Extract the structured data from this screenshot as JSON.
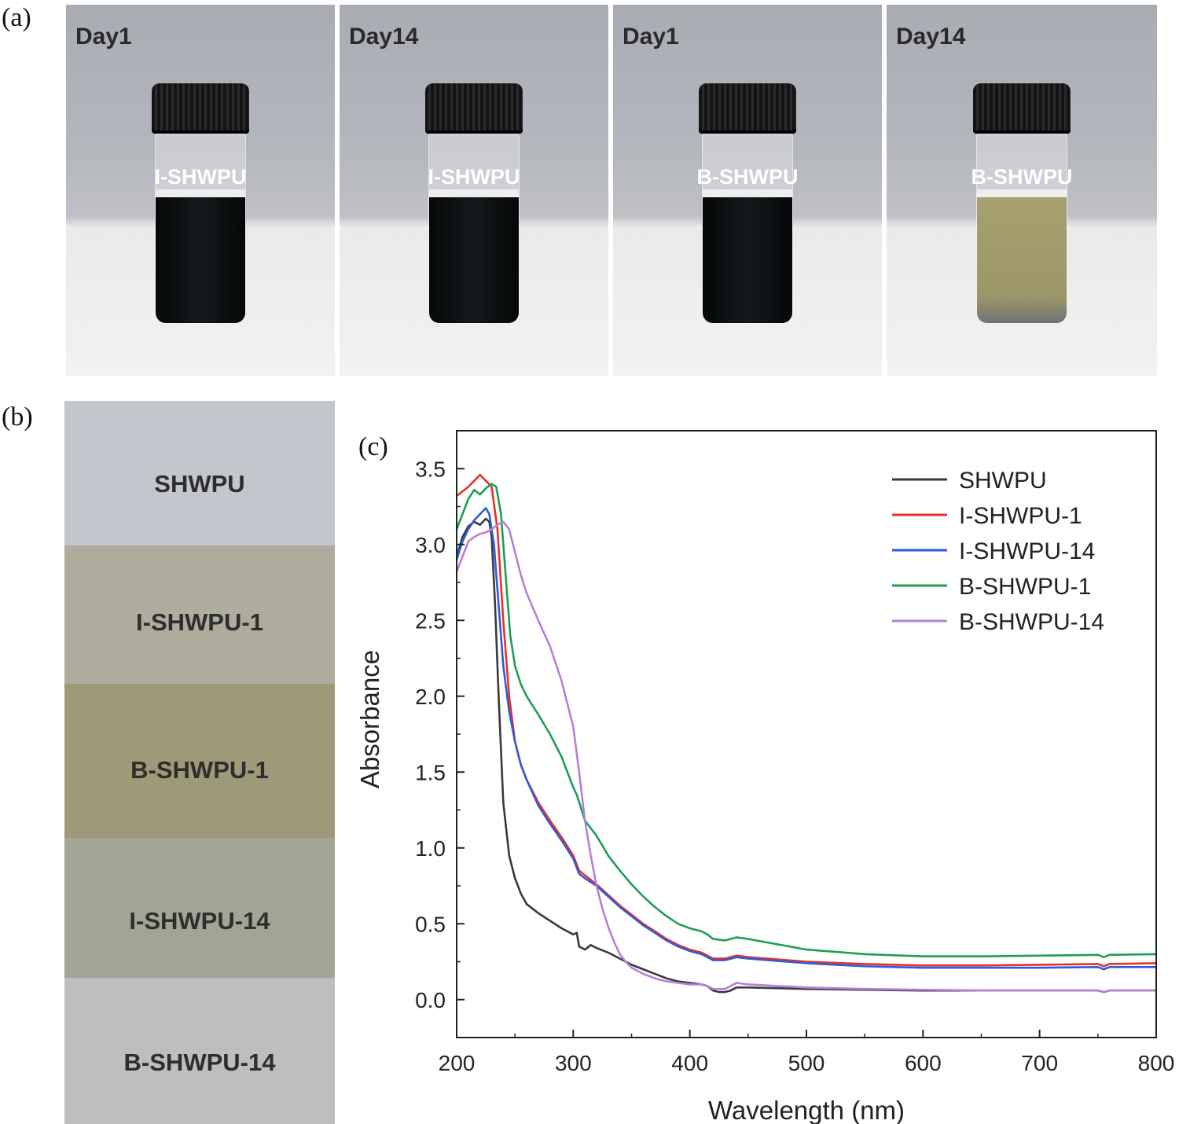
{
  "panels": {
    "a": "(a)",
    "b": "(b)",
    "c": "(c)"
  },
  "vials": [
    {
      "day": "Day1",
      "label": "I-SHWPU",
      "liquid": "dark"
    },
    {
      "day": "Day14",
      "label": "I-SHWPU",
      "liquid": "dark"
    },
    {
      "day": "Day1",
      "label": "B-SHWPU",
      "liquid": "dark"
    },
    {
      "day": "Day14",
      "label": "B-SHWPU",
      "liquid": "olive"
    }
  ],
  "films": [
    {
      "label": "SHWPU",
      "color": "#c3c6cc"
    },
    {
      "label": "I-SHWPU-1",
      "color": "#aeac9c"
    },
    {
      "label": "B-SHWPU-1",
      "color": "#9e9a78"
    },
    {
      "label": "I-SHWPU-14",
      "color": "#a2a494"
    },
    {
      "label": "B-SHWPU-14",
      "color": "#bdbfbf"
    }
  ],
  "chart_data": {
    "type": "line",
    "title": "",
    "xlabel": "Wavelength (nm)",
    "ylabel": "Absorbance",
    "xlim": [
      200,
      800
    ],
    "ylim": [
      -0.25,
      3.75
    ],
    "xticks": [
      200,
      300,
      400,
      500,
      600,
      700,
      800
    ],
    "yticks": [
      0.0,
      0.5,
      1.0,
      1.5,
      2.0,
      2.5,
      3.0,
      3.5
    ],
    "xtick_labels": [
      "200",
      "300",
      "400",
      "500",
      "600",
      "700",
      "800"
    ],
    "ytick_labels": [
      "0.0",
      "0.5",
      "1.0",
      "1.5",
      "2.0",
      "2.5",
      "3.0",
      "3.5"
    ],
    "legend_position": "top-right",
    "series": [
      {
        "name": "SHWPU",
        "color": "#3a3a3a",
        "points": [
          [
            200,
            2.92
          ],
          [
            205,
            3.05
          ],
          [
            210,
            3.12
          ],
          [
            215,
            3.15
          ],
          [
            220,
            3.13
          ],
          [
            225,
            3.17
          ],
          [
            228,
            3.15
          ],
          [
            230,
            3.05
          ],
          [
            233,
            2.6
          ],
          [
            236,
            2.0
          ],
          [
            240,
            1.3
          ],
          [
            245,
            0.95
          ],
          [
            250,
            0.8
          ],
          [
            255,
            0.7
          ],
          [
            260,
            0.63
          ],
          [
            270,
            0.57
          ],
          [
            280,
            0.52
          ],
          [
            290,
            0.47
          ],
          [
            300,
            0.43
          ],
          [
            303,
            0.44
          ],
          [
            305,
            0.35
          ],
          [
            310,
            0.33
          ],
          [
            315,
            0.36
          ],
          [
            320,
            0.34
          ],
          [
            330,
            0.31
          ],
          [
            340,
            0.27
          ],
          [
            350,
            0.23
          ],
          [
            360,
            0.2
          ],
          [
            370,
            0.17
          ],
          [
            380,
            0.14
          ],
          [
            390,
            0.12
          ],
          [
            400,
            0.11
          ],
          [
            410,
            0.1
          ],
          [
            415,
            0.09
          ],
          [
            420,
            0.06
          ],
          [
            425,
            0.05
          ],
          [
            430,
            0.05
          ],
          [
            435,
            0.06
          ],
          [
            440,
            0.08
          ],
          [
            450,
            0.08
          ],
          [
            500,
            0.07
          ],
          [
            550,
            0.065
          ],
          [
            600,
            0.06
          ],
          [
            650,
            0.06
          ],
          [
            700,
            0.06
          ],
          [
            750,
            0.06
          ],
          [
            755,
            0.05
          ],
          [
            760,
            0.06
          ],
          [
            800,
            0.06
          ]
        ]
      },
      {
        "name": "I-SHWPU-1",
        "color": "#e8302c",
        "points": [
          [
            200,
            3.32
          ],
          [
            205,
            3.35
          ],
          [
            210,
            3.38
          ],
          [
            215,
            3.42
          ],
          [
            220,
            3.46
          ],
          [
            225,
            3.42
          ],
          [
            230,
            3.38
          ],
          [
            235,
            3.1
          ],
          [
            240,
            2.5
          ],
          [
            245,
            2.0
          ],
          [
            250,
            1.7
          ],
          [
            255,
            1.55
          ],
          [
            260,
            1.45
          ],
          [
            270,
            1.3
          ],
          [
            280,
            1.18
          ],
          [
            290,
            1.07
          ],
          [
            300,
            0.95
          ],
          [
            305,
            0.85
          ],
          [
            310,
            0.82
          ],
          [
            320,
            0.76
          ],
          [
            330,
            0.69
          ],
          [
            340,
            0.62
          ],
          [
            350,
            0.56
          ],
          [
            360,
            0.5
          ],
          [
            370,
            0.45
          ],
          [
            380,
            0.4
          ],
          [
            390,
            0.36
          ],
          [
            400,
            0.33
          ],
          [
            410,
            0.31
          ],
          [
            415,
            0.29
          ],
          [
            420,
            0.27
          ],
          [
            430,
            0.27
          ],
          [
            440,
            0.29
          ],
          [
            450,
            0.28
          ],
          [
            500,
            0.25
          ],
          [
            550,
            0.235
          ],
          [
            600,
            0.225
          ],
          [
            650,
            0.225
          ],
          [
            700,
            0.23
          ],
          [
            750,
            0.235
          ],
          [
            755,
            0.22
          ],
          [
            760,
            0.235
          ],
          [
            800,
            0.24
          ]
        ]
      },
      {
        "name": "I-SHWPU-14",
        "color": "#2f5bd8",
        "points": [
          [
            200,
            2.9
          ],
          [
            205,
            3.02
          ],
          [
            210,
            3.1
          ],
          [
            215,
            3.16
          ],
          [
            220,
            3.2
          ],
          [
            225,
            3.24
          ],
          [
            228,
            3.2
          ],
          [
            232,
            3.0
          ],
          [
            236,
            2.6
          ],
          [
            240,
            2.2
          ],
          [
            245,
            1.9
          ],
          [
            250,
            1.7
          ],
          [
            255,
            1.55
          ],
          [
            260,
            1.45
          ],
          [
            270,
            1.28
          ],
          [
            280,
            1.16
          ],
          [
            290,
            1.05
          ],
          [
            300,
            0.93
          ],
          [
            305,
            0.83
          ],
          [
            310,
            0.8
          ],
          [
            320,
            0.75
          ],
          [
            330,
            0.68
          ],
          [
            340,
            0.61
          ],
          [
            350,
            0.55
          ],
          [
            360,
            0.49
          ],
          [
            370,
            0.44
          ],
          [
            380,
            0.39
          ],
          [
            390,
            0.35
          ],
          [
            400,
            0.32
          ],
          [
            410,
            0.3
          ],
          [
            415,
            0.28
          ],
          [
            420,
            0.26
          ],
          [
            430,
            0.26
          ],
          [
            440,
            0.28
          ],
          [
            450,
            0.27
          ],
          [
            500,
            0.24
          ],
          [
            550,
            0.22
          ],
          [
            600,
            0.21
          ],
          [
            650,
            0.21
          ],
          [
            700,
            0.21
          ],
          [
            750,
            0.215
          ],
          [
            755,
            0.2
          ],
          [
            760,
            0.215
          ],
          [
            800,
            0.215
          ]
        ]
      },
      {
        "name": "B-SHWPU-1",
        "color": "#1e9e57",
        "points": [
          [
            200,
            3.1
          ],
          [
            205,
            3.2
          ],
          [
            210,
            3.3
          ],
          [
            215,
            3.36
          ],
          [
            220,
            3.33
          ],
          [
            225,
            3.37
          ],
          [
            230,
            3.4
          ],
          [
            234,
            3.38
          ],
          [
            238,
            3.2
          ],
          [
            242,
            2.8
          ],
          [
            246,
            2.4
          ],
          [
            250,
            2.2
          ],
          [
            255,
            2.08
          ],
          [
            260,
            2.0
          ],
          [
            270,
            1.88
          ],
          [
            280,
            1.75
          ],
          [
            290,
            1.6
          ],
          [
            300,
            1.4
          ],
          [
            303,
            1.35
          ],
          [
            306,
            1.28
          ],
          [
            310,
            1.18
          ],
          [
            320,
            1.08
          ],
          [
            330,
            0.95
          ],
          [
            340,
            0.85
          ],
          [
            350,
            0.76
          ],
          [
            360,
            0.68
          ],
          [
            370,
            0.61
          ],
          [
            380,
            0.55
          ],
          [
            390,
            0.5
          ],
          [
            400,
            0.47
          ],
          [
            410,
            0.45
          ],
          [
            415,
            0.43
          ],
          [
            420,
            0.4
          ],
          [
            430,
            0.39
          ],
          [
            440,
            0.41
          ],
          [
            450,
            0.4
          ],
          [
            500,
            0.33
          ],
          [
            550,
            0.3
          ],
          [
            600,
            0.285
          ],
          [
            650,
            0.285
          ],
          [
            700,
            0.29
          ],
          [
            750,
            0.295
          ],
          [
            755,
            0.28
          ],
          [
            760,
            0.295
          ],
          [
            800,
            0.3
          ]
        ]
      },
      {
        "name": "B-SHWPU-14",
        "color": "#b77fd6",
        "points": [
          [
            200,
            2.82
          ],
          [
            205,
            2.92
          ],
          [
            210,
            3.02
          ],
          [
            215,
            3.05
          ],
          [
            220,
            3.07
          ],
          [
            225,
            3.08
          ],
          [
            230,
            3.1
          ],
          [
            235,
            3.13
          ],
          [
            240,
            3.15
          ],
          [
            245,
            3.1
          ],
          [
            250,
            2.95
          ],
          [
            255,
            2.8
          ],
          [
            260,
            2.68
          ],
          [
            270,
            2.5
          ],
          [
            280,
            2.33
          ],
          [
            290,
            2.1
          ],
          [
            300,
            1.8
          ],
          [
            305,
            1.5
          ],
          [
            310,
            1.18
          ],
          [
            315,
            0.95
          ],
          [
            320,
            0.75
          ],
          [
            325,
            0.6
          ],
          [
            330,
            0.48
          ],
          [
            335,
            0.38
          ],
          [
            340,
            0.3
          ],
          [
            345,
            0.25
          ],
          [
            350,
            0.21
          ],
          [
            360,
            0.17
          ],
          [
            370,
            0.14
          ],
          [
            380,
            0.12
          ],
          [
            390,
            0.11
          ],
          [
            400,
            0.1
          ],
          [
            410,
            0.1
          ],
          [
            415,
            0.09
          ],
          [
            420,
            0.07
          ],
          [
            430,
            0.07
          ],
          [
            440,
            0.11
          ],
          [
            450,
            0.1
          ],
          [
            500,
            0.08
          ],
          [
            550,
            0.07
          ],
          [
            600,
            0.065
          ],
          [
            650,
            0.06
          ],
          [
            700,
            0.06
          ],
          [
            750,
            0.06
          ],
          [
            755,
            0.05
          ],
          [
            760,
            0.06
          ],
          [
            800,
            0.06
          ]
        ]
      }
    ]
  }
}
